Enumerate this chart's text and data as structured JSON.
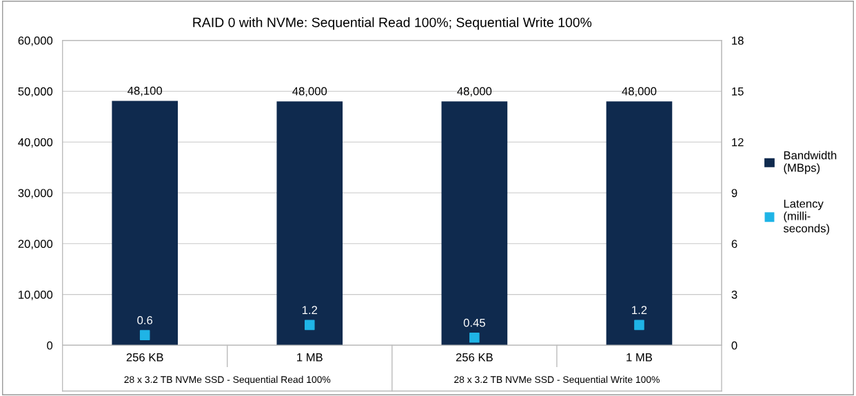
{
  "chart_data": {
    "type": "bar",
    "title": "RAID 0 with NVMe: Sequential Read 100%; Sequential Write 100%",
    "categories": [
      "256 KB",
      "1 MB",
      "256 KB",
      "1 MB"
    ],
    "series": [
      {
        "name": "Bandwidth\n(MBps)",
        "color": "#0f2a4e",
        "values": [
          48100,
          48000,
          48000,
          48000
        ],
        "value_labels": [
          "48,100",
          "48,000",
          "48,000",
          "48,000"
        ]
      },
      {
        "name": "Latency\n(milli-\nseconds)",
        "type": "scatter",
        "axis": "y2",
        "color": "#1fb4e6",
        "marker": "square",
        "values": [
          0.6,
          1.2,
          0.45,
          1.2
        ],
        "value_labels": [
          "0.6",
          "1.2",
          "0.45",
          "1.2"
        ]
      }
    ],
    "annotations": [
      "28 x 3.2 TB NVMe SSD - Sequential Read 100%",
      "28 x 3.2 TB NVMe SSD - Sequential Write 100%"
    ],
    "ylim": [
      0,
      60000
    ],
    "yticks": [
      {
        "value": 0,
        "label": "0"
      },
      {
        "value": 10000,
        "label": "10,000"
      },
      {
        "value": 20000,
        "label": "20,000"
      },
      {
        "value": 30000,
        "label": "30,000"
      },
      {
        "value": 40000,
        "label": "40,000"
      },
      {
        "value": 50000,
        "label": "50,000"
      },
      {
        "value": 60000,
        "label": "60,000"
      }
    ],
    "y2lim": [
      0,
      18
    ],
    "y2ticks": [
      0,
      3,
      6,
      9,
      12,
      15,
      18
    ],
    "grid": "y",
    "legend": "right"
  }
}
